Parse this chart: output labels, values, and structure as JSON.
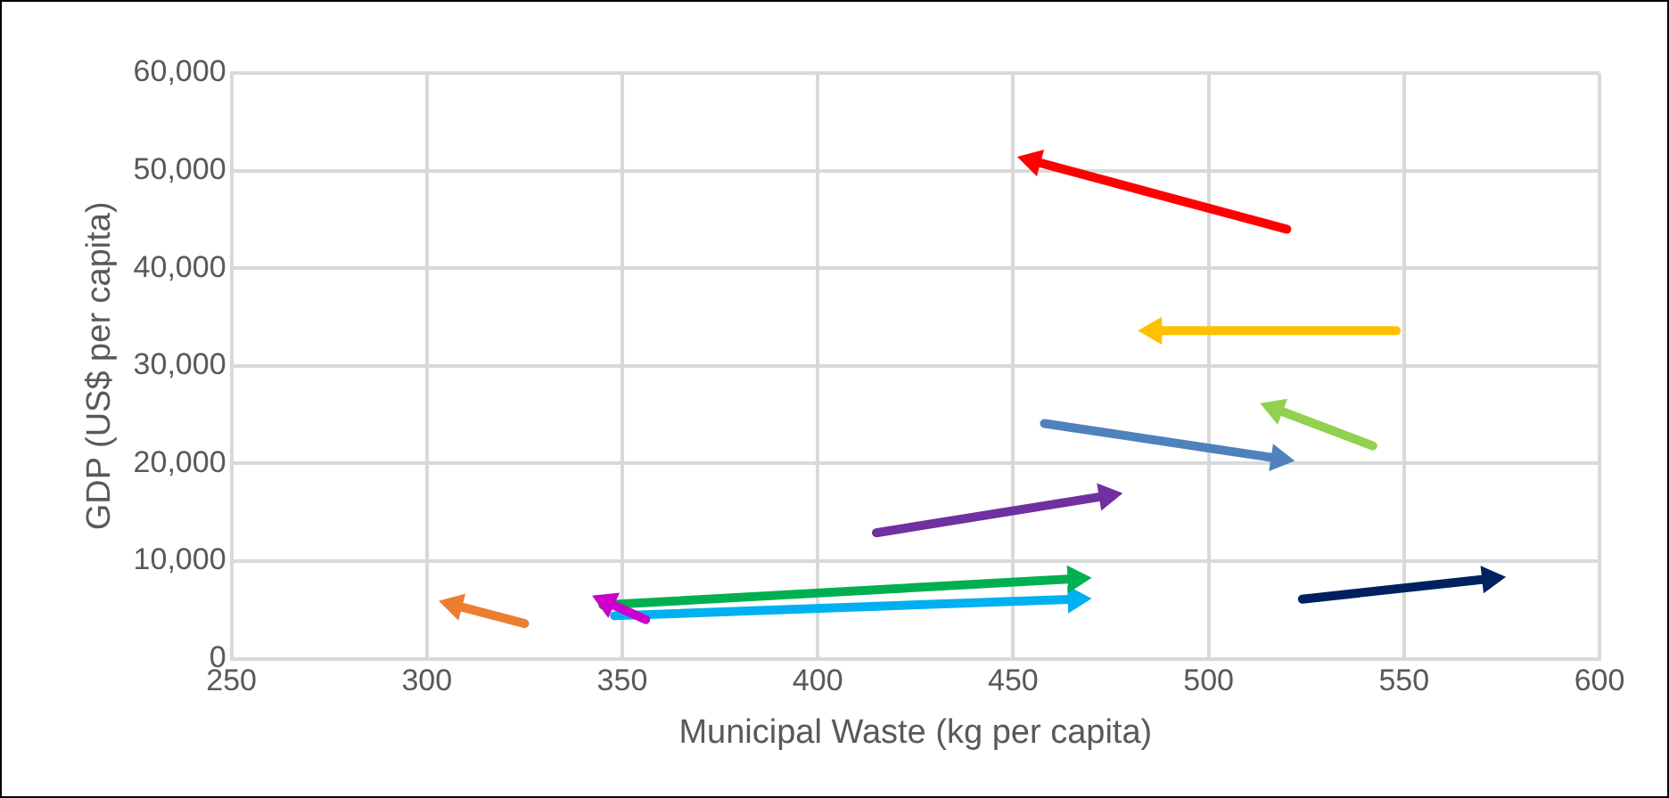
{
  "chart_data": {
    "type": "line",
    "xlabel": "Municipal Waste (kg per capita)",
    "ylabel": "GDP (US$ per capita)",
    "xlim": [
      250,
      600
    ],
    "xticks": [
      250,
      300,
      350,
      400,
      450,
      500,
      550,
      600
    ],
    "ylim": [
      0,
      60000
    ],
    "yticks": [
      0,
      {
        "value": 10000,
        "label": "10,000"
      },
      {
        "value": 20000,
        "label": "20,000"
      },
      {
        "value": 30000,
        "label": "30,000"
      },
      {
        "value": 40000,
        "label": "40,000"
      },
      {
        "value": 50000,
        "label": "50,000"
      },
      {
        "value": 60000,
        "label": "60,000"
      }
    ],
    "grid": true,
    "legend": false,
    "marker": "triangle",
    "line_style": "solid",
    "series": [
      {
        "color": "#ff0000",
        "x": [
          520,
          455
        ],
        "values": [
          44000,
          51000
        ]
      },
      {
        "color": "#ffc000",
        "x": [
          548,
          486
        ],
        "values": [
          33600,
          33600
        ]
      },
      {
        "color": "#92d050",
        "x": [
          542,
          517
        ],
        "values": [
          21800,
          25600
        ]
      },
      {
        "color": "#4f81bd",
        "x": [
          458,
          518
        ],
        "values": [
          24100,
          20500
        ]
      },
      {
        "color": "#7030a0",
        "x": [
          415,
          474
        ],
        "values": [
          12900,
          16700
        ]
      },
      {
        "color": "#cc00cc",
        "x": [
          356,
          346
        ],
        "values": [
          4000,
          5800
        ]
      },
      {
        "color": "#00b050",
        "x": [
          345,
          466
        ],
        "values": [
          5500,
          8200
        ]
      },
      {
        "color": "#00b0f0",
        "x": [
          348,
          466
        ],
        "values": [
          4400,
          6100
        ]
      },
      {
        "color": "#002060",
        "x": [
          524,
          572
        ],
        "values": [
          6100,
          8200
        ]
      },
      {
        "color": "#ed7d31",
        "x": [
          325,
          307
        ],
        "values": [
          3600,
          5500
        ]
      }
    ]
  }
}
